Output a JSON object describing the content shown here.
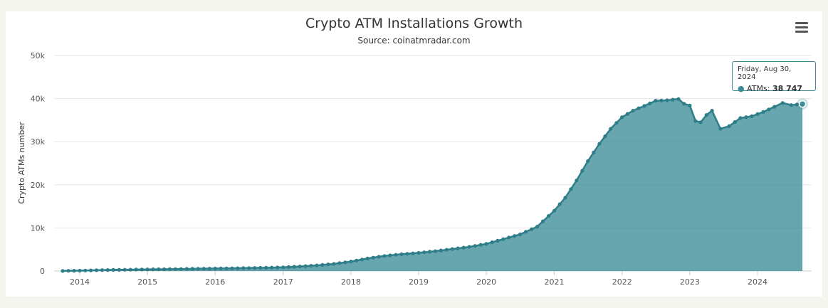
{
  "chart_data": {
    "type": "area",
    "title": "Crypto ATM Installations Growth",
    "subtitle": "Source: coinatmradar.com",
    "ylabel": "Crypto ATMs number",
    "xlabel": "",
    "ylim": [
      0,
      50000
    ],
    "y_ticks": [
      "0",
      "10k",
      "20k",
      "30k",
      "40k",
      "50k"
    ],
    "x_ticks": [
      "2014",
      "2015",
      "2016",
      "2017",
      "2018",
      "2019",
      "2020",
      "2021",
      "2022",
      "2023",
      "2024"
    ],
    "grid": true,
    "legend": "none",
    "series": [
      {
        "name": "ATMs",
        "color": "#3c8c98",
        "points": [
          [
            "2013-10-01",
            20
          ],
          [
            "2014-01-01",
            90
          ],
          [
            "2014-04-01",
            180
          ],
          [
            "2014-07-01",
            260
          ],
          [
            "2014-10-01",
            320
          ],
          [
            "2015-01-01",
            380
          ],
          [
            "2015-04-01",
            420
          ],
          [
            "2015-07-01",
            470
          ],
          [
            "2015-10-01",
            530
          ],
          [
            "2016-01-01",
            580
          ],
          [
            "2016-04-01",
            630
          ],
          [
            "2016-07-01",
            690
          ],
          [
            "2016-10-01",
            760
          ],
          [
            "2017-01-01",
            860
          ],
          [
            "2017-04-01",
            1050
          ],
          [
            "2017-07-01",
            1300
          ],
          [
            "2017-10-01",
            1650
          ],
          [
            "2018-01-01",
            2200
          ],
          [
            "2018-04-01",
            2900
          ],
          [
            "2018-07-01",
            3500
          ],
          [
            "2018-10-01",
            3900
          ],
          [
            "2019-01-01",
            4200
          ],
          [
            "2019-04-01",
            4600
          ],
          [
            "2019-07-01",
            5100
          ],
          [
            "2019-10-01",
            5600
          ],
          [
            "2020-01-01",
            6300
          ],
          [
            "2020-04-01",
            7400
          ],
          [
            "2020-07-01",
            8500
          ],
          [
            "2020-10-01",
            10300
          ],
          [
            "2021-01-01",
            14000
          ],
          [
            "2021-03-01",
            17000
          ],
          [
            "2021-05-01",
            21000
          ],
          [
            "2021-07-01",
            25500
          ],
          [
            "2021-09-01",
            29500
          ],
          [
            "2021-11-01",
            33000
          ],
          [
            "2022-01-01",
            35700
          ],
          [
            "2022-03-01",
            37200
          ],
          [
            "2022-05-01",
            38300
          ],
          [
            "2022-07-01",
            39500
          ],
          [
            "2022-09-01",
            39600
          ],
          [
            "2022-11-01",
            39900
          ],
          [
            "2022-12-01",
            38800
          ],
          [
            "2023-01-01",
            38400
          ],
          [
            "2023-02-01",
            34800
          ],
          [
            "2023-03-01",
            34500
          ],
          [
            "2023-04-01",
            36200
          ],
          [
            "2023-05-01",
            37200
          ],
          [
            "2023-06-15",
            33000
          ],
          [
            "2023-08-01",
            33600
          ],
          [
            "2023-10-01",
            35500
          ],
          [
            "2023-12-01",
            35900
          ],
          [
            "2024-02-01",
            36900
          ],
          [
            "2024-04-01",
            38100
          ],
          [
            "2024-05-15",
            39000
          ],
          [
            "2024-07-01",
            38500
          ],
          [
            "2024-08-30",
            38747
          ]
        ]
      }
    ],
    "tooltip": {
      "date": "Friday, Aug 30, 2024",
      "series": "ATMs",
      "value": "38 747"
    }
  },
  "icons": {
    "menu": "hamburger-menu-icon"
  }
}
